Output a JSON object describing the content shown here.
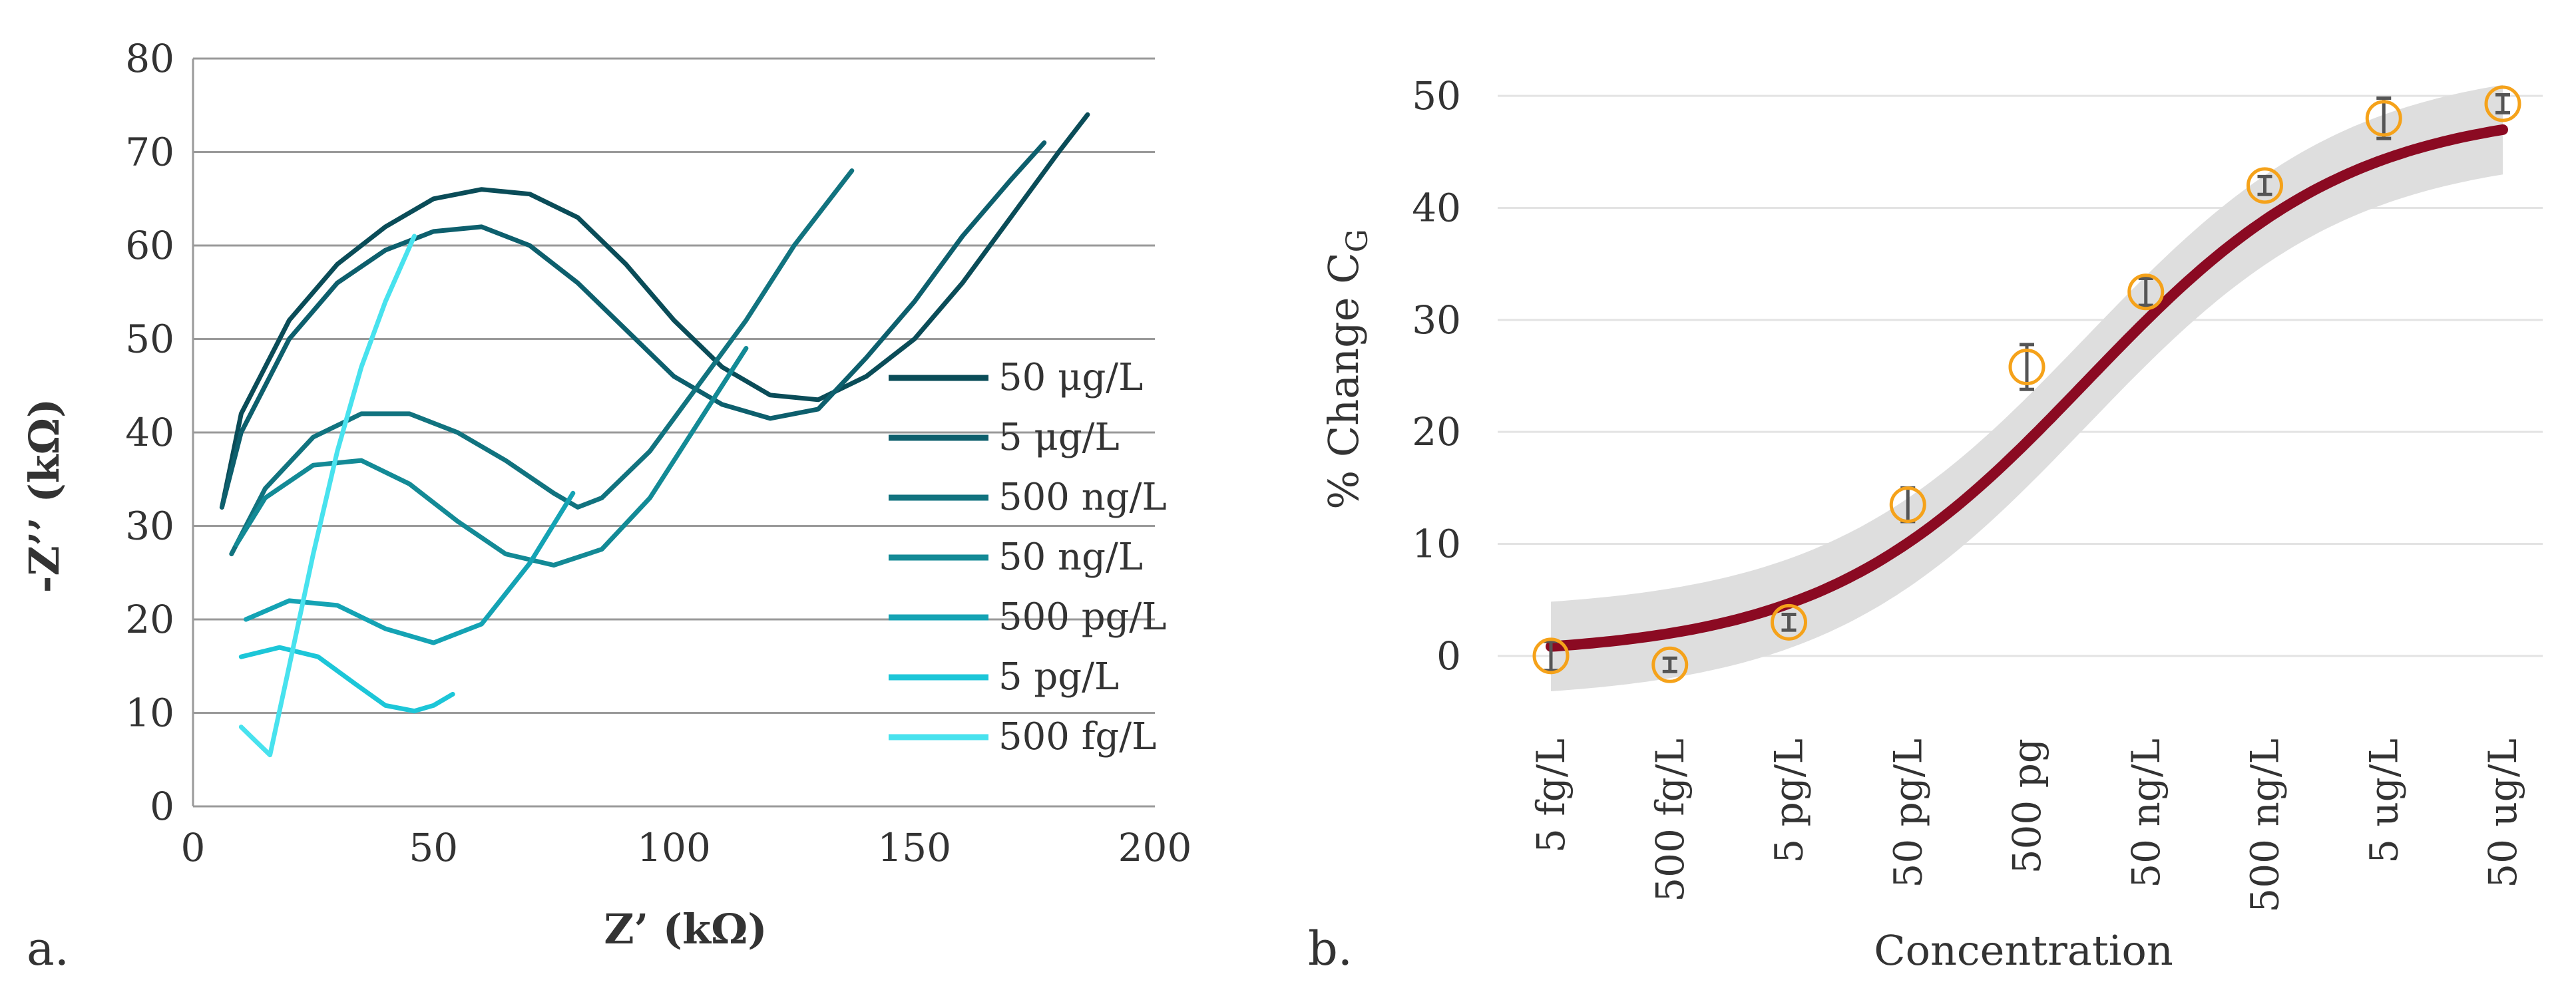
{
  "panel_a": {
    "label": "a.",
    "chart_data": {
      "type": "line",
      "title": "",
      "xlabel": "Z’ (kΩ)",
      "ylabel": "-Z’’ (kΩ)",
      "xlim": [
        0,
        200
      ],
      "ylim": [
        0,
        80
      ],
      "xticks": [
        0,
        50,
        100,
        150,
        200
      ],
      "yticks": [
        0,
        10,
        20,
        30,
        40,
        50,
        60,
        70,
        80
      ],
      "grid": "horizontal",
      "legend": "right",
      "series": [
        {
          "name": "50 μg/L",
          "color": "#0a4c58",
          "x": [
            6,
            10,
            20,
            30,
            40,
            50,
            60,
            70,
            80,
            90,
            100,
            110,
            120,
            130,
            140,
            150,
            160,
            170,
            180,
            186
          ],
          "y": [
            32,
            42,
            52,
            58,
            62,
            65,
            66,
            65.5,
            63,
            58,
            52,
            47,
            44,
            43.5,
            46,
            50,
            56,
            63,
            70,
            74
          ]
        },
        {
          "name": "5 μg/L",
          "color": "#0d5f6d",
          "x": [
            6,
            10,
            20,
            30,
            40,
            50,
            60,
            70,
            80,
            90,
            100,
            110,
            120,
            130,
            140,
            150,
            160,
            170,
            177
          ],
          "y": [
            32,
            40,
            50,
            56,
            59.5,
            61.5,
            62,
            60,
            56,
            51,
            46,
            43,
            41.5,
            42.5,
            48,
            54,
            61,
            67,
            71
          ]
        },
        {
          "name": "500 ng/L",
          "color": "#11737f",
          "x": [
            8,
            15,
            25,
            35,
            45,
            55,
            65,
            75,
            80,
            85,
            95,
            105,
            115,
            125,
            137
          ],
          "y": [
            27,
            34,
            39.5,
            42,
            42,
            40,
            37,
            33.5,
            32,
            33,
            38,
            45,
            52,
            60,
            68
          ]
        },
        {
          "name": "50 ng/L",
          "color": "#138a96",
          "x": [
            9,
            15,
            25,
            35,
            45,
            55,
            65,
            75,
            85,
            95,
            105,
            115
          ],
          "y": [
            28,
            33,
            36.5,
            37,
            34.5,
            30.5,
            27,
            25.8,
            27.5,
            33,
            41,
            49
          ]
        },
        {
          "name": "500 pg/L",
          "color": "#14a3b4",
          "x": [
            11,
            20,
            30,
            40,
            50,
            60,
            70,
            79
          ],
          "y": [
            20,
            22,
            21.5,
            19,
            17.5,
            19.5,
            26,
            33.5
          ]
        },
        {
          "name": "5 pg/L",
          "color": "#1cc6d8",
          "x": [
            10,
            18,
            26,
            34,
            40,
            46,
            50,
            54
          ],
          "y": [
            16,
            17,
            16,
            13,
            10.8,
            10.2,
            10.8,
            12
          ]
        },
        {
          "name": "500 fg/L",
          "color": "#48e2ee",
          "x": [
            10,
            13,
            16,
            20,
            25,
            30,
            35,
            40,
            46
          ],
          "y": [
            8.5,
            7,
            5.5,
            15,
            27,
            38,
            47,
            54,
            61
          ]
        }
      ]
    }
  },
  "panel_b": {
    "label": "b.",
    "chart_data": {
      "type": "scatter",
      "title": "",
      "xlabel": "Concentration",
      "ylabel": "% Change C",
      "ylabel_subscript": "G",
      "ylim": [
        -5,
        55
      ],
      "yticks": [
        0,
        10,
        20,
        30,
        40,
        50
      ],
      "grid": "horizontal",
      "categories": [
        "5 fg/L",
        "500 fg/L",
        "5 pg/L",
        "50 pg/L",
        "500 pg",
        "50 ng/L",
        "500 ng/L",
        "5 ug/L",
        "50 ug/L"
      ],
      "points": [
        {
          "category": "5 fg/L",
          "value": 0,
          "err": 1.3
        },
        {
          "category": "500 fg/L",
          "value": -0.8,
          "err": 0.6
        },
        {
          "category": "5 pg/L",
          "value": 3,
          "err": 0.7
        },
        {
          "category": "50 pg/L",
          "value": 13.5,
          "err": 1.5
        },
        {
          "category": "500 pg",
          "value": 25.8,
          "err": 2.0
        },
        {
          "category": "50 ng/L",
          "value": 32.5,
          "err": 1.2
        },
        {
          "category": "500 ng/L",
          "value": 42,
          "err": 0.8
        },
        {
          "category": "5 ug/L",
          "value": 48,
          "err": 1.8
        },
        {
          "category": "50 ug/L",
          "value": 49.3,
          "err": 0.8
        }
      ],
      "fit": {
        "model": "sigmoid",
        "lower": 0,
        "upper": 49,
        "midpoint_index": 4.5,
        "slope": 0.9,
        "confidence_band": 4,
        "color": "#8b0a22",
        "band_color": "#dedede"
      },
      "marker_color": "#f5a21a",
      "errorbar_color": "#555555"
    }
  }
}
